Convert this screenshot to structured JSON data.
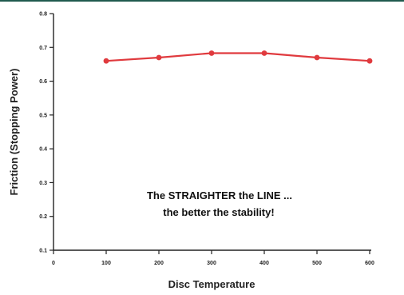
{
  "chart_data": {
    "type": "line",
    "x": [
      100,
      200,
      300,
      400,
      500,
      600
    ],
    "series": [
      {
        "values": [
          0.66,
          0.67,
          0.683,
          0.683,
          0.67,
          0.66
        ],
        "color": "#e03a3e"
      }
    ],
    "xlabel": "Disc Temperature",
    "ylabel": "Friction (Stopping Power)",
    "xlim": [
      0,
      600
    ],
    "ylim": [
      0.1,
      0.8
    ],
    "xticks": [
      "0",
      "100",
      "200",
      "300",
      "400",
      "500",
      "600"
    ],
    "yticks": [
      "0.1",
      "0.2",
      "0.3",
      "0.4",
      "0.5",
      "0.6",
      "0.7",
      "0.8"
    ],
    "grid": false,
    "annotation_line1": "The STRAIGHTER the LINE ...",
    "annotation_line2": "the better the stability!"
  },
  "colors": {
    "header_rule": "#1f5a4e",
    "series": "#e03a3e"
  }
}
